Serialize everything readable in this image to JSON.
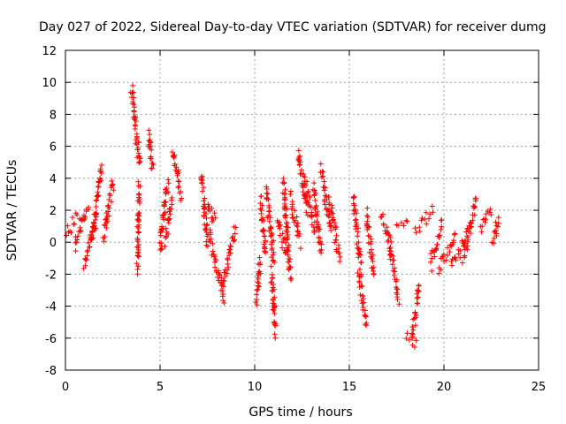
{
  "chart_data": {
    "type": "scatter",
    "title": "Day 027 of 2022, Sidereal Day-to-day VTEC variation (SDTVAR) for receiver dumg",
    "xlabel": "GPS time / hours",
    "ylabel": "SDTVAR / TECUs",
    "xlim": [
      0,
      25
    ],
    "ylim": [
      -8,
      12
    ],
    "x_ticks": [
      "0",
      "5",
      "10",
      "15",
      "20",
      "25"
    ],
    "y_ticks": [
      "-8",
      "-6",
      "-4",
      "-2",
      "0",
      "2",
      "4",
      "6",
      "8",
      "10",
      "12"
    ],
    "grid": true,
    "marker": "+",
    "color": "#ff0000",
    "series": [
      {
        "name": "SDTVAR",
        "segments": [
          {
            "x": [
              0.0,
              0.7
            ],
            "y": [
              0.4,
              1.8
            ]
          },
          {
            "x": [
              0.5,
              1.2
            ],
            "y": [
              -0.3,
              2.2
            ]
          },
          {
            "x": [
              1.0,
              1.6
            ],
            "y": [
              -1.6,
              1.5
            ]
          },
          {
            "x": [
              1.4,
              1.9
            ],
            "y": [
              0.2,
              4.8
            ]
          },
          {
            "x": [
              2.0,
              2.5
            ],
            "y": [
              0.3,
              3.7
            ]
          },
          {
            "x": [
              3.5,
              3.9
            ],
            "y": [
              9.8,
              4.8
            ]
          },
          {
            "x": [
              3.8,
              3.9
            ],
            "y": [
              -1.6,
              3.5
            ]
          },
          {
            "x": [
              4.4,
              4.6
            ],
            "y": [
              6.9,
              4.6
            ]
          },
          {
            "x": [
              5.0,
              5.4
            ],
            "y": [
              -0.6,
              3.8
            ]
          },
          {
            "x": [
              5.3,
              5.6
            ],
            "y": [
              0.0,
              2.6
            ]
          },
          {
            "x": [
              5.7,
              6.1
            ],
            "y": [
              5.8,
              3.0
            ]
          },
          {
            "x": [
              7.2,
              7.5
            ],
            "y": [
              4.2,
              -0.2
            ]
          },
          {
            "x": [
              7.5,
              7.9
            ],
            "y": [
              2.6,
              1.2
            ]
          },
          {
            "x": [
              7.6,
              8.4
            ],
            "y": [
              0.5,
              -3.6
            ]
          },
          {
            "x": [
              8.3,
              9.0
            ],
            "y": [
              -2.6,
              0.8
            ]
          },
          {
            "x": [
              10.1,
              10.3
            ],
            "y": [
              -3.6,
              -1.0
            ]
          },
          {
            "x": [
              10.3,
              10.6
            ],
            "y": [
              2.6,
              -0.8
            ]
          },
          {
            "x": [
              10.6,
              11.0
            ],
            "y": [
              3.4,
              -1.2
            ]
          },
          {
            "x": [
              10.9,
              11.1
            ],
            "y": [
              -1.8,
              -5.6
            ]
          },
          {
            "x": [
              11.2,
              11.7
            ],
            "y": [
              1.4,
              -0.9
            ]
          },
          {
            "x": [
              11.5,
              11.9
            ],
            "y": [
              3.9,
              -2.2
            ]
          },
          {
            "x": [
              11.9,
              12.4
            ],
            "y": [
              2.8,
              0.0
            ]
          },
          {
            "x": [
              12.3,
              12.8
            ],
            "y": [
              5.6,
              1.8
            ]
          },
          {
            "x": [
              12.6,
              13.2
            ],
            "y": [
              4.0,
              0.5
            ]
          },
          {
            "x": [
              13.1,
              13.5
            ],
            "y": [
              3.4,
              -0.6
            ]
          },
          {
            "x": [
              13.5,
              14.0
            ],
            "y": [
              4.5,
              0.9
            ]
          },
          {
            "x": [
              13.9,
              14.5
            ],
            "y": [
              2.9,
              -1.0
            ]
          },
          {
            "x": [
              15.2,
              15.6
            ],
            "y": [
              3.0,
              -1.5
            ]
          },
          {
            "x": [
              15.5,
              15.9
            ],
            "y": [
              -1.8,
              -5.2
            ]
          },
          {
            "x": [
              15.9,
              16.3
            ],
            "y": [
              1.8,
              -2.0
            ]
          },
          {
            "x": [
              16.7,
              17.2
            ],
            "y": [
              1.6,
              -0.4
            ]
          },
          {
            "x": [
              17.1,
              17.6
            ],
            "y": [
              0.0,
              -3.5
            ]
          },
          {
            "x": [
              17.5,
              18.1
            ],
            "y": [
              0.9,
              1.6
            ]
          },
          {
            "x": [
              18.0,
              18.5
            ],
            "y": [
              -5.8,
              -6.5
            ]
          },
          {
            "x": [
              18.3,
              18.7
            ],
            "y": [
              -6.0,
              -2.8
            ]
          },
          {
            "x": [
              18.5,
              19.4
            ],
            "y": [
              0.6,
              2.2
            ]
          },
          {
            "x": [
              19.3,
              19.9
            ],
            "y": [
              -1.4,
              1.2
            ]
          },
          {
            "x": [
              19.7,
              20.6
            ],
            "y": [
              -1.8,
              0.5
            ]
          },
          {
            "x": [
              20.4,
              21.3
            ],
            "y": [
              -1.6,
              0.6
            ]
          },
          {
            "x": [
              21.0,
              21.7
            ],
            "y": [
              -1.2,
              2.8
            ]
          },
          {
            "x": [
              21.9,
              22.5
            ],
            "y": [
              0.6,
              2.0
            ]
          },
          {
            "x": [
              22.6,
              22.9
            ],
            "y": [
              -0.2,
              1.5
            ]
          }
        ]
      }
    ]
  }
}
